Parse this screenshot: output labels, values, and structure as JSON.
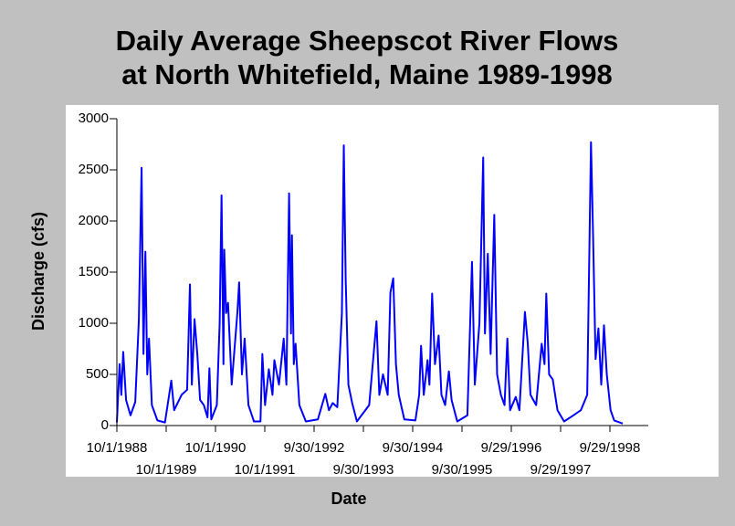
{
  "chart_data": {
    "type": "line",
    "title": [
      "Daily Average Sheepscot River Flows",
      "at North Whitefield, Maine 1989-1998"
    ],
    "xlabel": "Date",
    "ylabel": "Discharge (cfs)",
    "x": [
      "10/1/1988",
      "10/21/1988",
      "11/3/1988",
      "11/17/1988",
      "12/8/1988",
      "1/10/1989",
      "2/14/1989",
      "3/13/1989",
      "4/2/1989",
      "4/16/1989",
      "4/30/1989",
      "5/14/1989",
      "5/27/1989",
      "6/17/1989",
      "7/28/1989",
      "9/22/1989",
      "11/8/1989",
      "11/29/1989",
      "1/23/1990",
      "3/5/1990",
      "3/26/1990",
      "4/9/1990",
      "4/29/1990",
      "5/20/1990",
      "6/9/1990",
      "7/7/1990",
      "8/3/1990",
      "8/17/1990",
      "8/31/1990",
      "10/11/1990",
      "11/1/1990",
      "11/15/1990",
      "11/29/1990",
      "12/5/1990",
      "12/19/1990",
      "1/2/1991",
      "1/29/1991",
      "3/12/1991",
      "3/25/1991",
      "4/15/1991",
      "5/5/1991",
      "6/2/1991",
      "7/13/1991",
      "8/30/1991",
      "9/13/1991",
      "10/3/1991",
      "10/31/1991",
      "11/27/1991",
      "12/11/1991",
      "1/14/1992",
      "2/18/1992",
      "3/9/1992",
      "3/29/1992",
      "4/12/1992",
      "4/19/1992",
      "5/3/1992",
      "5/16/1992",
      "6/13/1992",
      "7/31/1992",
      "10/28/1992",
      "12/22/1992",
      "1/18/1993",
      "2/15/1993",
      "3/21/1993",
      "4/24/1993",
      "5/8/1993",
      "5/22/1993",
      "6/11/1993",
      "7/9/1993",
      "8/13/1993",
      "11/12/1993",
      "1/5/1994",
      "1/26/1994",
      "2/22/1994",
      "3/29/1994",
      "4/18/1994",
      "5/9/1994",
      "5/29/1994",
      "6/19/1994",
      "7/30/1994",
      "10/20/1994",
      "11/17/1994",
      "12/1/1994",
      "12/21/1994",
      "1/18/1995",
      "2/1/1995",
      "2/21/1995",
      "3/14/1995",
      "4/10/1995",
      "5/1/1995",
      "5/28/1995",
      "6/25/1995",
      "7/15/1995",
      "8/26/1995",
      "11/9/1995",
      "12/13/1995",
      "1/3/1996",
      "2/6/1996",
      "3/5/1996",
      "3/18/1996",
      "4/8/1996",
      "4/29/1996",
      "5/26/1996",
      "6/16/1996",
      "7/14/1996",
      "8/10/1996",
      "8/31/1996",
      "9/20/1996",
      "11/1/1996",
      "11/28/1996",
      "1/8/1997",
      "1/29/1997",
      "2/18/1997",
      "4/1/1997",
      "5/12/1997",
      "6/2/1997",
      "6/15/1997",
      "7/6/1997",
      "8/2/1997",
      "9/6/1997",
      "10/25/1997",
      "1/2/1998",
      "2/26/1998",
      "4/14/1998",
      "5/12/1998",
      "5/26/1998",
      "6/15/1998",
      "7/6/1998",
      "7/27/1998",
      "8/16/1998",
      "9/6/1998",
      "10/4/1998",
      "10/31/1998",
      "1/2/1999"
    ],
    "series": [
      {
        "name": "Discharge",
        "color": "#0000ff",
        "values": [
          30,
          600,
          300,
          720,
          250,
          100,
          230,
          1040,
          2520,
          700,
          1700,
          500,
          850,
          200,
          50,
          30,
          440,
          150,
          300,
          350,
          1380,
          400,
          1040,
          690,
          250,
          200,
          80,
          560,
          60,
          200,
          1000,
          2250,
          600,
          1720,
          1100,
          1200,
          400,
          1100,
          1400,
          500,
          850,
          200,
          40,
          40,
          700,
          200,
          550,
          300,
          640,
          400,
          850,
          400,
          2270,
          900,
          1860,
          600,
          800,
          200,
          40,
          60,
          310,
          150,
          220,
          180,
          1100,
          2740,
          1430,
          400,
          220,
          40,
          200,
          1020,
          300,
          500,
          300,
          1300,
          1440,
          600,
          300,
          60,
          50,
          300,
          780,
          300,
          640,
          400,
          1290,
          600,
          880,
          300,
          200,
          530,
          250,
          40,
          100,
          1600,
          400,
          1000,
          2620,
          900,
          1680,
          700,
          2060,
          500,
          300,
          200,
          850,
          150,
          280,
          150,
          1110,
          800,
          300,
          200,
          800,
          600,
          1290,
          500,
          450,
          150,
          40,
          100,
          150,
          300,
          2770,
          1950,
          650,
          950,
          400,
          980,
          500,
          150,
          50,
          20
        ]
      }
    ],
    "xlim": [
      "10/1/1988",
      "7/10/1999"
    ],
    "xticks": [
      "10/1/1988",
      "10/1/1989",
      "10/1/1990",
      "10/1/1991",
      "9/30/1992",
      "9/30/1993",
      "9/30/1994",
      "9/30/1995",
      "9/29/1996",
      "9/29/1997",
      "9/29/1998"
    ],
    "ylim": [
      0,
      3000
    ],
    "yticks": [
      0,
      500,
      1000,
      1500,
      2000,
      2500,
      3000
    ],
    "grid": false
  }
}
